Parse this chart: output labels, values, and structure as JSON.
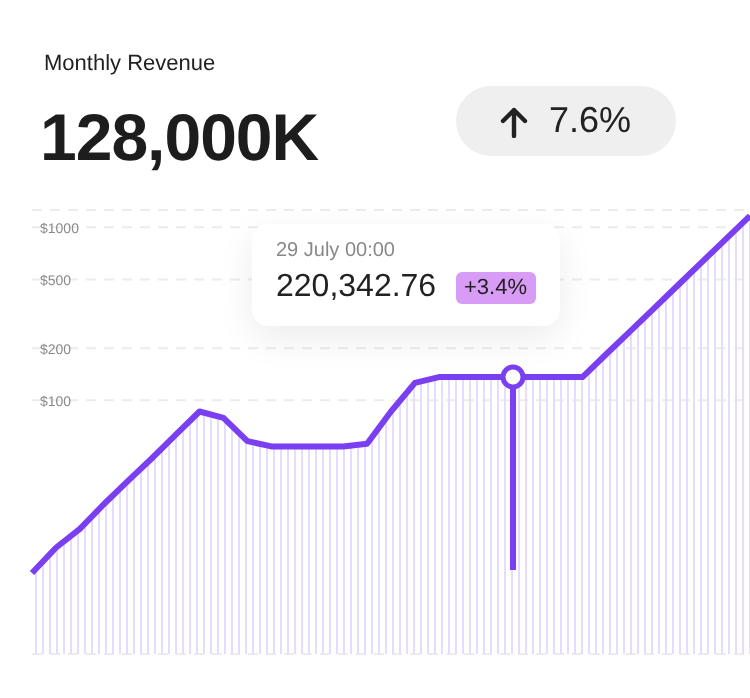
{
  "chart_data": {
    "type": "area",
    "title": "Monthly Revenue",
    "subtitle": "128,000K",
    "annotations": [
      "7.6%",
      "29 July 00:00",
      "220,342.76",
      "+3.4%"
    ],
    "categories": [
      null,
      null,
      null,
      null,
      null,
      null,
      null,
      null,
      null,
      null,
      null,
      null,
      null,
      null,
      null,
      null,
      null,
      null,
      null,
      null,
      null,
      null,
      null,
      null,
      null,
      null,
      null,
      null,
      null,
      null,
      null
    ],
    "series": [
      {
        "color": "#7b3ff2",
        "values": [
          10,
          14,
          18,
          25,
          34,
          46,
          63,
          86,
          79,
          58,
          54,
          54,
          54,
          54,
          56,
          86,
          126,
          136,
          136,
          136,
          136,
          136,
          136,
          136,
          185,
          251,
          341,
          464,
          631,
          858,
          1166
        ]
      }
    ],
    "ylim": [
      3.4,
      1260
    ],
    "log": true,
    "yticks": [
      {
        "value": 100,
        "label": "$100"
      },
      {
        "value": 200,
        "label": "$200"
      },
      {
        "value": 500,
        "label": "$500"
      },
      {
        "value": 1000,
        "label": "$1000"
      }
    ],
    "tick_labels": "y",
    "grid": "y",
    "marker": "none",
    "line_style": "solid"
  }
}
